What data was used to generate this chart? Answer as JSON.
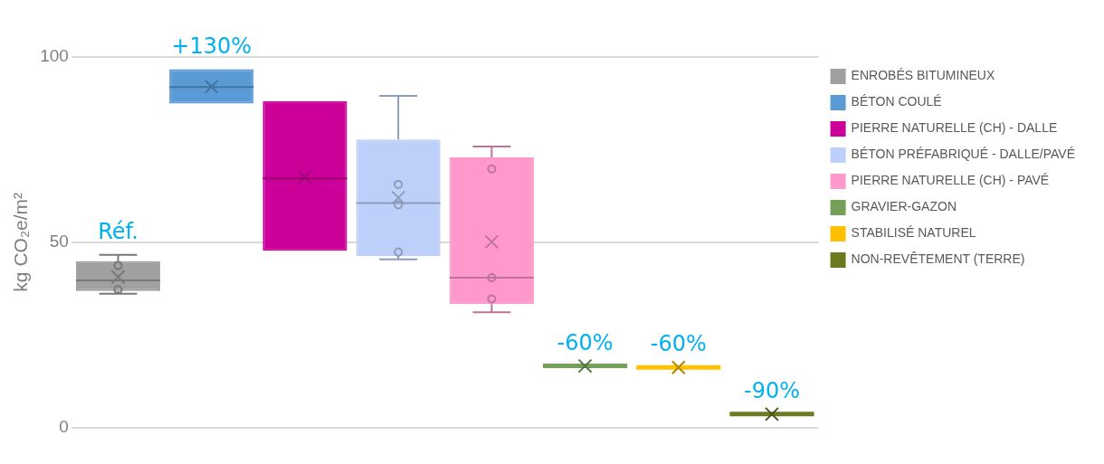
{
  "chart_data": {
    "type": "box",
    "ylabel": "kg CO₂e/m²",
    "categories": [
      null,
      null,
      null,
      null,
      null,
      null,
      null,
      null
    ],
    "ylim": [
      0,
      100
    ],
    "yticks": [
      0,
      50,
      100
    ],
    "grid": "y",
    "legend": "top right",
    "series": [
      {
        "name": "ENROBÉS BITUMINEUX",
        "color": "#a0a0a0",
        "value_labels": [
          "Réf.",
          null,
          null,
          null,
          null,
          null,
          null,
          null
        ],
        "boxes": [
          {
            "low": 36.1,
            "q1": 36.8,
            "median": 39.7,
            "q3": 44.9,
            "high": 46.6,
            "mean": 40.6,
            "outliers": [
              43.7,
              37.2
            ]
          },
          null,
          null,
          null,
          null,
          null,
          null,
          null
        ]
      },
      {
        "name": "BÉTON COULÉ",
        "color": "#5b9bd5",
        "value_labels": [
          null,
          "+130%",
          null,
          null,
          null,
          null,
          null,
          null
        ],
        "boxes": [
          null,
          {
            "low": 87.4,
            "q1": 87.4,
            "median": 91.9,
            "q3": 96.7,
            "high": 96.7,
            "mean": 92
          },
          null,
          null,
          null,
          null,
          null,
          null
        ]
      },
      {
        "name": "PIERRE NATURELLE (CH) - DALLE",
        "color": "#cc0099",
        "boxes": [
          null,
          null,
          {
            "low": 47.7,
            "q1": 47.7,
            "median": 67.2,
            "q3": 88.1,
            "high": 88.1,
            "mean": 67.5
          },
          null,
          null,
          null,
          null,
          null
        ]
      },
      {
        "name": "BÉTON PRÉFABRIQUÉ - DALLE/PAVÉ",
        "color": "#bdd0f9",
        "boxes": [
          null,
          null,
          null,
          {
            "low": 45.4,
            "q1": 46.3,
            "median": 60.6,
            "q3": 77.7,
            "high": 89.5,
            "mean": 62,
            "outliers": [
              65.6,
              60.1,
              47.3
            ]
          },
          null,
          null,
          null,
          null
        ]
      },
      {
        "name": "PIERRE NATURELLE (CH) - PAVÉ",
        "color": "#ff99cc",
        "boxes": [
          null,
          null,
          null,
          null,
          {
            "low": 31.1,
            "q1": 33.3,
            "median": 40.4,
            "q3": 72.9,
            "high": 75.8,
            "mean": 50.1,
            "outliers": [
              69.8,
              40.4,
              34.7
            ]
          },
          null,
          null,
          null
        ]
      },
      {
        "name": "GRAVIER-GAZON",
        "color": "#76a05a",
        "value_labels": [
          null,
          null,
          null,
          null,
          null,
          "-60%",
          null,
          null
        ],
        "boxes": [
          null,
          null,
          null,
          null,
          null,
          {
            "low": 16.6,
            "q1": 16.6,
            "median": 16.6,
            "q3": 16.6,
            "high": 16.6,
            "mean": 16.6
          },
          null,
          null
        ]
      },
      {
        "name": "STABILISÉ NATUREL",
        "color": "#ffc000",
        "value_labels": [
          null,
          null,
          null,
          null,
          null,
          null,
          "-60%",
          null
        ],
        "boxes": [
          null,
          null,
          null,
          null,
          null,
          null,
          {
            "low": 16.2,
            "q1": 16.2,
            "median": 16.2,
            "q3": 16.2,
            "high": 16.2,
            "mean": 16.2
          },
          null
        ]
      },
      {
        "name": "NON-REVÊTEMENT (TERRE)",
        "color": "#6b7a20",
        "value_labels": [
          null,
          null,
          null,
          null,
          null,
          null,
          null,
          "-90%"
        ],
        "boxes": [
          null,
          null,
          null,
          null,
          null,
          null,
          null,
          {
            "low": 3.6,
            "q1": 3.6,
            "median": 3.6,
            "q3": 3.6,
            "high": 3.6,
            "mean": 3.6
          }
        ]
      }
    ]
  }
}
